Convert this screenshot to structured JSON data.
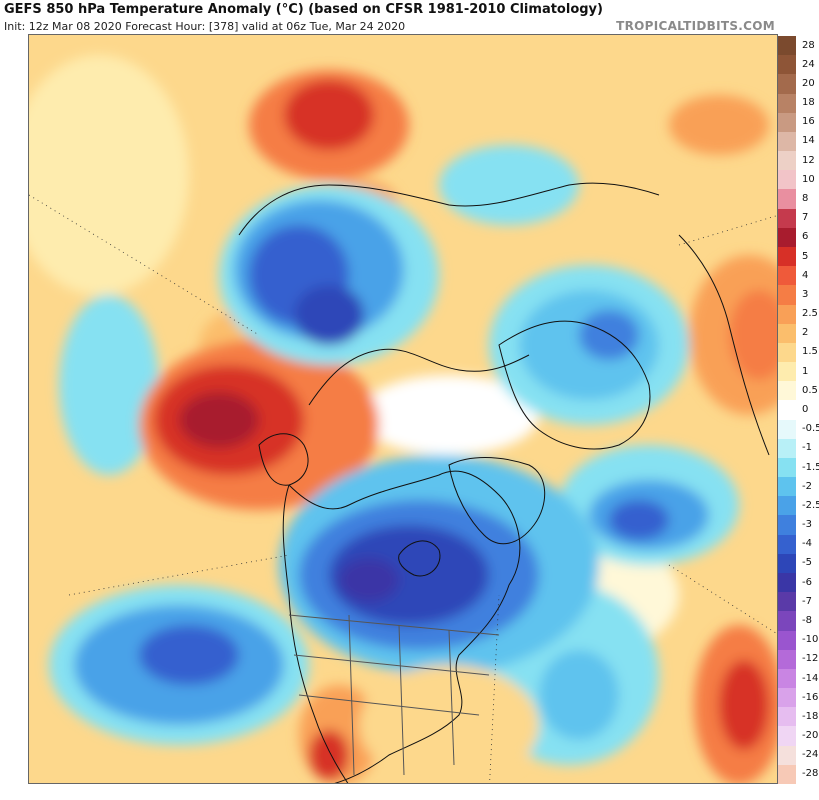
{
  "header": {
    "title": "GEFS 850 hPa Temperature Anomaly (°C) (based on CFSR 1981-2010 Climatology)",
    "subtitle": "Init: 12z Mar 08 2020   Forecast Hour: [378]   valid at 06z Tue, Mar 24 2020",
    "brand": "TROPICALTIDBITS.COM"
  },
  "colorbar": {
    "unit": "°C",
    "levels": [
      {
        "label": "28",
        "color": "#7b4a2e"
      },
      {
        "label": "24",
        "color": "#8e5537"
      },
      {
        "label": "20",
        "color": "#a36a4c"
      },
      {
        "label": "18",
        "color": "#b88265"
      },
      {
        "label": "16",
        "color": "#c99a82"
      },
      {
        "label": "14",
        "color": "#ddb7a6"
      },
      {
        "label": "12",
        "color": "#edd0c6"
      },
      {
        "label": "10",
        "color": "#f2c4c8"
      },
      {
        "label": "8",
        "color": "#e98fa0"
      },
      {
        "label": "7",
        "color": "#c53a4d"
      },
      {
        "label": "6",
        "color": "#a81c2e"
      },
      {
        "label": "5",
        "color": "#d73027"
      },
      {
        "label": "4",
        "color": "#ef5a3a"
      },
      {
        "label": "3",
        "color": "#f57d45"
      },
      {
        "label": "2.5",
        "color": "#f9a057"
      },
      {
        "label": "2",
        "color": "#fbbe6c"
      },
      {
        "label": "1.5",
        "color": "#fdd88c"
      },
      {
        "label": "1",
        "color": "#feecae"
      },
      {
        "label": "0.5",
        "color": "#fff8d8"
      },
      {
        "label": "0",
        "color": "#ffffff"
      },
      {
        "label": "-0.5",
        "color": "#e6f9fb"
      },
      {
        "label": "-1",
        "color": "#b8f0f7"
      },
      {
        "label": "-1.5",
        "color": "#86e1f2"
      },
      {
        "label": "-2",
        "color": "#5ec3ee"
      },
      {
        "label": "-2.5",
        "color": "#4aa2e8"
      },
      {
        "label": "-3",
        "color": "#3f80de"
      },
      {
        "label": "-4",
        "color": "#3561cf"
      },
      {
        "label": "-5",
        "color": "#2d46b8"
      },
      {
        "label": "-6",
        "color": "#3a36a6"
      },
      {
        "label": "-7",
        "color": "#5a3aa8"
      },
      {
        "label": "-8",
        "color": "#7b46bc"
      },
      {
        "label": "-10",
        "color": "#9a55cf"
      },
      {
        "label": "-12",
        "color": "#b46ad9"
      },
      {
        "label": "-14",
        "color": "#c985e3"
      },
      {
        "label": "-16",
        "color": "#d9a2ea"
      },
      {
        "label": "-18",
        "color": "#e6bdf0"
      },
      {
        "label": "-20",
        "color": "#f0d6f4"
      },
      {
        "label": "-24",
        "color": "#f5e0dc"
      },
      {
        "label": "-28",
        "color": "#f7c9b6"
      }
    ]
  }
}
